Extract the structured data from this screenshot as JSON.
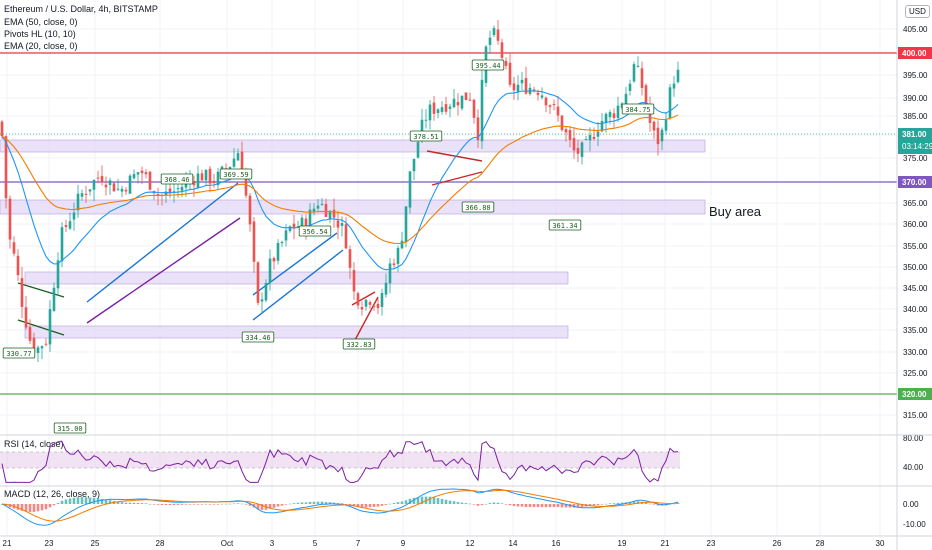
{
  "header": {
    "title": "Ethereum / U.S. Dollar, 4h, BITSTAMP",
    "indicators": [
      "EMA (50, close, 0)",
      "Pivots HL (10, 10)",
      "EMA (20, close, 0)"
    ],
    "currency": "USD",
    "top_price_cut": "4"
  },
  "chart_data": [
    {
      "type": "candlestick",
      "title": "Ethereum / U.S. Dollar, 4h, BITSTAMP",
      "x_ticks": [
        "21",
        "23",
        "25",
        "28",
        "Oct",
        "3",
        "5",
        "7",
        "9",
        "12",
        "14",
        "16",
        "19",
        "21",
        "23",
        "26",
        "28",
        "30"
      ],
      "y_ticks": [
        "405.00",
        "400.00",
        "395.00",
        "390.00",
        "385.00",
        "381.00",
        "375.00",
        "370.00",
        "365.00",
        "360.00",
        "355.00",
        "350.00",
        "345.00",
        "340.00",
        "335.00",
        "330.00",
        "325.00",
        "320.00",
        "315.00"
      ],
      "ylim": [
        310,
        410
      ],
      "current_price": 381.0,
      "countdown": "03:14:29",
      "close_anchors": [
        [
          0,
          372
        ],
        [
          3,
          368
        ],
        [
          8,
          351
        ],
        [
          15,
          346
        ],
        [
          23,
          337
        ],
        [
          30,
          331
        ],
        [
          36,
          329
        ],
        [
          46,
          331
        ],
        [
          60,
          350
        ],
        [
          80,
          358
        ],
        [
          100,
          362
        ],
        [
          120,
          359
        ],
        [
          140,
          363
        ],
        [
          160,
          358
        ],
        [
          175,
          359
        ],
        [
          190,
          361
        ],
        [
          200,
          362
        ],
        [
          215,
          361
        ],
        [
          230,
          364
        ],
        [
          240,
          367
        ],
        [
          250,
          352
        ],
        [
          258,
          337
        ],
        [
          270,
          345
        ],
        [
          290,
          352
        ],
        [
          305,
          353
        ],
        [
          318,
          357
        ],
        [
          335,
          354
        ],
        [
          345,
          351
        ],
        [
          353,
          340
        ],
        [
          362,
          338
        ],
        [
          372,
          339
        ],
        [
          380,
          337
        ],
        [
          390,
          345
        ],
        [
          400,
          348
        ],
        [
          410,
          362
        ],
        [
          420,
          370
        ],
        [
          428,
          374
        ],
        [
          440,
          375
        ],
        [
          455,
          376
        ],
        [
          470,
          377
        ],
        [
          478,
          370
        ],
        [
          485,
          385
        ],
        [
          492,
          389
        ],
        [
          500,
          386
        ],
        [
          510,
          378
        ],
        [
          520,
          379
        ],
        [
          540,
          378
        ],
        [
          555,
          374
        ],
        [
          565,
          370
        ],
        [
          575,
          366
        ],
        [
          585,
          367
        ],
        [
          600,
          372
        ],
        [
          615,
          374
        ],
        [
          625,
          377
        ],
        [
          635,
          383
        ],
        [
          643,
          378
        ],
        [
          652,
          370
        ],
        [
          660,
          368
        ],
        [
          668,
          376
        ],
        [
          675,
          381
        ],
        [
          680,
          381
        ]
      ],
      "series": [
        {
          "name": "Price (close)",
          "color": "#26a69a"
        },
        {
          "name": "EMA (20, close, 0)",
          "color": "#2196f3"
        },
        {
          "name": "EMA (50, close, 0)",
          "color": "#f57c00"
        }
      ],
      "horizontal_levels": [
        {
          "price": 400.0,
          "label": "400.00",
          "color": "#f23645"
        },
        {
          "price": 370.0,
          "label": "370.00",
          "color": "#7e57c2"
        },
        {
          "price": 320.0,
          "label": "320.00",
          "color": "#4caf50"
        }
      ],
      "zones": [
        {
          "from": 379,
          "to": 381,
          "color": "#e1d5f5"
        },
        {
          "from": 363,
          "to": 365,
          "color": "#e1d5f5"
        },
        {
          "from": 347,
          "to": 349,
          "color": "#e1d5f5"
        },
        {
          "from": 334,
          "to": 336,
          "color": "#e1d5f5"
        }
      ],
      "annotations": [
        {
          "text": "Buy area"
        }
      ],
      "pivots": [
        {
          "label": "330.77",
          "price": 330.77,
          "kind": "low"
        },
        {
          "label": "315.00",
          "price": 315.0,
          "kind": "low"
        },
        {
          "label": "368.46",
          "price": 368.46,
          "kind": "high"
        },
        {
          "label": "369.59",
          "price": 369.59,
          "kind": "high"
        },
        {
          "label": "334.46",
          "price": 334.46,
          "kind": "low"
        },
        {
          "label": "356.54",
          "price": 356.54,
          "kind": "high"
        },
        {
          "label": "332.83",
          "price": 332.83,
          "kind": "low"
        },
        {
          "label": "378.51",
          "price": 378.51,
          "kind": "high"
        },
        {
          "label": "395.44",
          "price": 395.44,
          "kind": "high"
        },
        {
          "label": "366.88",
          "price": 366.88,
          "kind": "low"
        },
        {
          "label": "361.34",
          "price": 361.34,
          "kind": "low"
        },
        {
          "label": "384.75",
          "price": 384.75,
          "kind": "high"
        }
      ]
    },
    {
      "type": "line",
      "title": "RSI (14, close)",
      "y_ticks": [
        "80.00",
        "40.00"
      ],
      "ylim": [
        20,
        90
      ],
      "band": [
        30,
        70
      ],
      "series": [
        {
          "name": "RSI (14, close)",
          "color": "#7b1fa2"
        }
      ]
    },
    {
      "type": "bar",
      "title": "MACD (12, 26, close, 9)",
      "y_ticks": [
        "0.00",
        "-10.00"
      ],
      "ylim": [
        -15,
        10
      ],
      "series": [
        {
          "name": "MACD",
          "color": "#2196f3"
        },
        {
          "name": "Signal",
          "color": "#f57c00"
        }
      ]
    }
  ]
}
